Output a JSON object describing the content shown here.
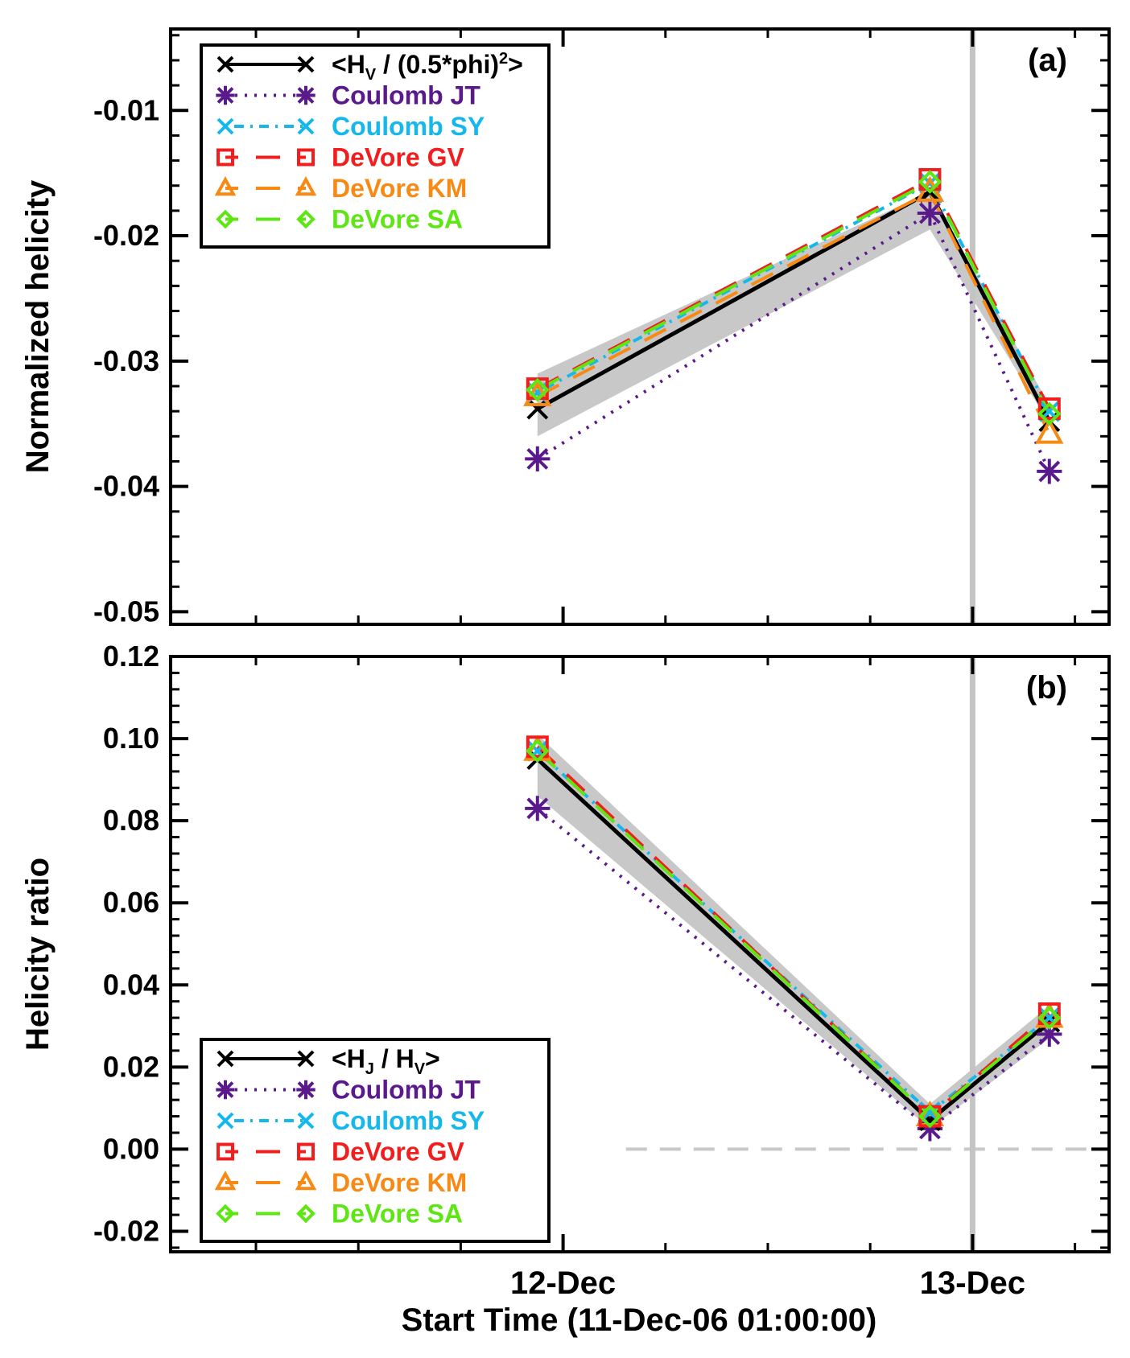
{
  "figure": {
    "xlabel": "Start Time (11-Dec-06 01:00:00)",
    "x_tick_labels": [
      "12-Dec",
      "13-Dec"
    ]
  },
  "chart_data": [
    {
      "type": "line",
      "panel_label": "(a)",
      "ylabel": "Normalized helicity",
      "ylim": [
        -0.051,
        -0.0035
      ],
      "yticks": [
        -0.05,
        -0.04,
        -0.03,
        -0.02,
        -0.01
      ],
      "ytick_labels": [
        "-0.05",
        "-0.04",
        "-0.03",
        "-0.02",
        "-0.01"
      ],
      "x_hours": [
        21.5,
        44.5,
        51.5
      ],
      "xlim": [
        0,
        55
      ],
      "band": {
        "upper": [
          -0.031,
          -0.0165,
          -0.0335
        ],
        "lower": [
          -0.036,
          -0.0195,
          -0.035
        ]
      },
      "series": [
        {
          "name": "Coulomb JT",
          "color": "#5a1a8c",
          "values": [
            -0.0378,
            -0.0182,
            -0.0388
          ]
        },
        {
          "name": "Coulomb SY",
          "color": "#16b8ec",
          "values": [
            -0.0325,
            -0.0158,
            -0.034
          ]
        },
        {
          "name": "DeVore GV",
          "color": "#f21d1d",
          "values": [
            -0.0322,
            -0.0155,
            -0.0338
          ]
        },
        {
          "name": "DeVore KM",
          "color": "#f78a14",
          "values": [
            -0.0328,
            -0.0165,
            -0.0358
          ]
        },
        {
          "name": "DeVore SA",
          "color": "#5ee614",
          "values": [
            -0.0323,
            -0.0157,
            -0.0342
          ]
        },
        {
          "name": "mean",
          "color": "#000000",
          "values": [
            -0.0338,
            -0.0165,
            -0.0348
          ]
        }
      ],
      "legend": {
        "mean_label_prefix": "<H",
        "mean_label_sub": "V",
        "mean_label_mid": " / (0.5*phi)",
        "mean_label_sup": "2",
        "mean_label_suffix": ">",
        "entries": [
          "Coulomb JT",
          "Coulomb SY",
          "DeVore GV",
          "DeVore KM",
          "DeVore SA"
        ]
      },
      "vline_hours": 47.0
    },
    {
      "type": "line",
      "panel_label": "(b)",
      "ylabel": "Helicity ratio",
      "ylim": [
        -0.025,
        0.12
      ],
      "yticks": [
        -0.02,
        0.0,
        0.02,
        0.04,
        0.06,
        0.08,
        0.1,
        0.12
      ],
      "ytick_labels": [
        "-0.02",
        "0.00",
        "0.02",
        "0.04",
        "0.06",
        "0.08",
        "0.10",
        "0.12"
      ],
      "x_hours": [
        21.5,
        44.5,
        51.5
      ],
      "xlim": [
        0,
        55
      ],
      "band": {
        "upper": [
          0.101,
          0.011,
          0.035
        ],
        "lower": [
          0.086,
          0.005,
          0.027
        ]
      },
      "series": [
        {
          "name": "Coulomb JT",
          "color": "#5a1a8c",
          "values": [
            0.083,
            0.005,
            0.028
          ]
        },
        {
          "name": "Coulomb SY",
          "color": "#16b8ec",
          "values": [
            0.097,
            0.009,
            0.032
          ]
        },
        {
          "name": "DeVore GV",
          "color": "#f21d1d",
          "values": [
            0.098,
            0.008,
            0.033
          ]
        },
        {
          "name": "DeVore KM",
          "color": "#f78a14",
          "values": [
            0.097,
            0.008,
            0.032
          ]
        },
        {
          "name": "DeVore SA",
          "color": "#5ee614",
          "values": [
            0.097,
            0.008,
            0.032
          ]
        },
        {
          "name": "mean",
          "color": "#000000",
          "values": [
            0.095,
            0.007,
            0.031
          ]
        }
      ],
      "legend": {
        "mean_label_prefix": "<H",
        "mean_label_sub": "J",
        "mean_label_mid": " / H",
        "mean_label_sup2": "V",
        "mean_label_suffix": ">",
        "entries": [
          "Coulomb JT",
          "Coulomb SY",
          "DeVore GV",
          "DeVore KM",
          "DeVore SA"
        ]
      },
      "zero_line": 0.0,
      "vline_hours": 47.0
    }
  ]
}
